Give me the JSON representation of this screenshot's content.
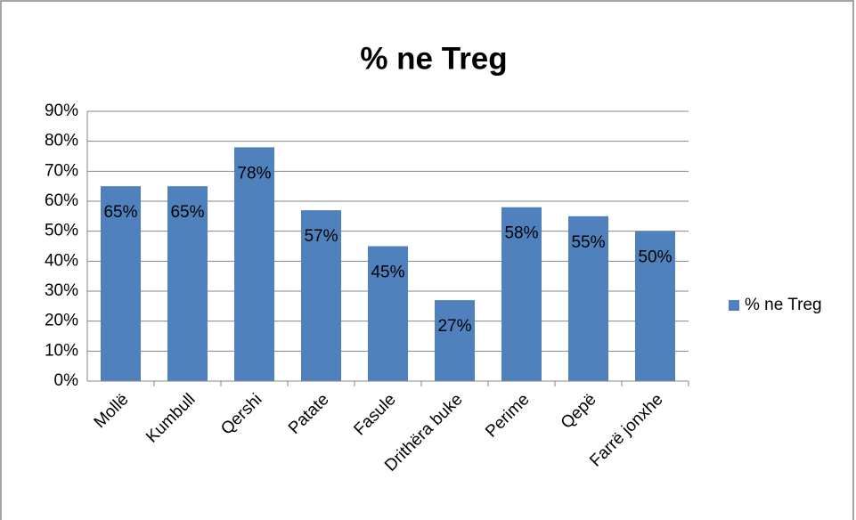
{
  "chart_data": {
    "type": "bar",
    "title": "% ne Treg",
    "categories": [
      "Mollë",
      "Kumbull",
      "Qershi",
      "Patate",
      "Fasule",
      "Drithëra buke",
      "Perime",
      "Qepë",
      "Farrë jonxhe"
    ],
    "series": [
      {
        "name": "% ne Treg",
        "color": "#4f81bd",
        "values": [
          65,
          65,
          78,
          57,
          45,
          27,
          58,
          55,
          50
        ],
        "value_labels": [
          "65%",
          "65%",
          "78%",
          "57%",
          "45%",
          "27%",
          "58%",
          "55%",
          "50%"
        ]
      }
    ],
    "ylim": [
      0,
      90
    ],
    "yticks": [
      {
        "value": 0,
        "label": "0%"
      },
      {
        "value": 10,
        "label": "10%"
      },
      {
        "value": 20,
        "label": "20%"
      },
      {
        "value": 30,
        "label": "30%"
      },
      {
        "value": 40,
        "label": "40%"
      },
      {
        "value": 50,
        "label": "50%"
      },
      {
        "value": 60,
        "label": "60%"
      },
      {
        "value": 70,
        "label": "70%"
      },
      {
        "value": 80,
        "label": "80%"
      },
      {
        "value": 90,
        "label": "90%"
      }
    ],
    "grid": true,
    "legend": "right"
  }
}
